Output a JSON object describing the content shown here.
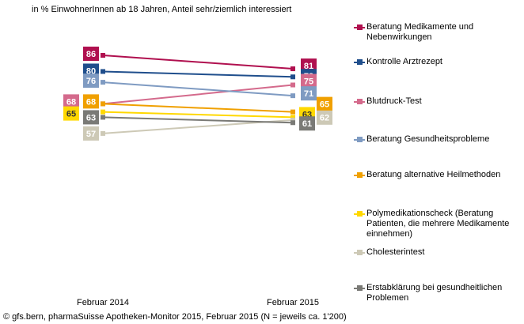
{
  "chart_data": {
    "type": "line",
    "subtitle": "in % EinwohnerInnen ab 18 Jahren, Anteil sehr/ziemlich interessiert",
    "source": "© gfs.bern, pharmaSuisse Apotheken-Monitor 2015, Februar 2015 (N = jeweils ca. 1'200)",
    "categories": [
      "Februar 2014",
      "Februar 2015"
    ],
    "series": [
      {
        "name": "Beratung Medikamente und Nebenwirkungen",
        "color": "#b0104f",
        "values": [
          86,
          81
        ]
      },
      {
        "name": "Kontrolle Arztrezept",
        "color": "#1f4e8c",
        "values": [
          80,
          78
        ]
      },
      {
        "name": "Blutdruck-Test",
        "color": "#d46a8c",
        "values": [
          68,
          75
        ]
      },
      {
        "name": "Beratung Gesundheitsprobleme",
        "color": "#7f9bc2",
        "values": [
          76,
          71
        ]
      },
      {
        "name": "Beratung alternative Heilmethoden",
        "color": "#f0a000",
        "values": [
          68,
          65
        ]
      },
      {
        "name": "Polymedikationscheck (Beratung Patienten, die mehrere Medikamente einnehmen)",
        "color": "#ffd800",
        "values": [
          65,
          63
        ]
      },
      {
        "name": "Cholesterintest",
        "color": "#cdc9b6",
        "values": [
          57,
          62
        ]
      },
      {
        "name": "Erstabklärung bei gesundheitlichen Problemen",
        "color": "#7a7a76",
        "values": [
          63,
          61
        ]
      }
    ]
  }
}
